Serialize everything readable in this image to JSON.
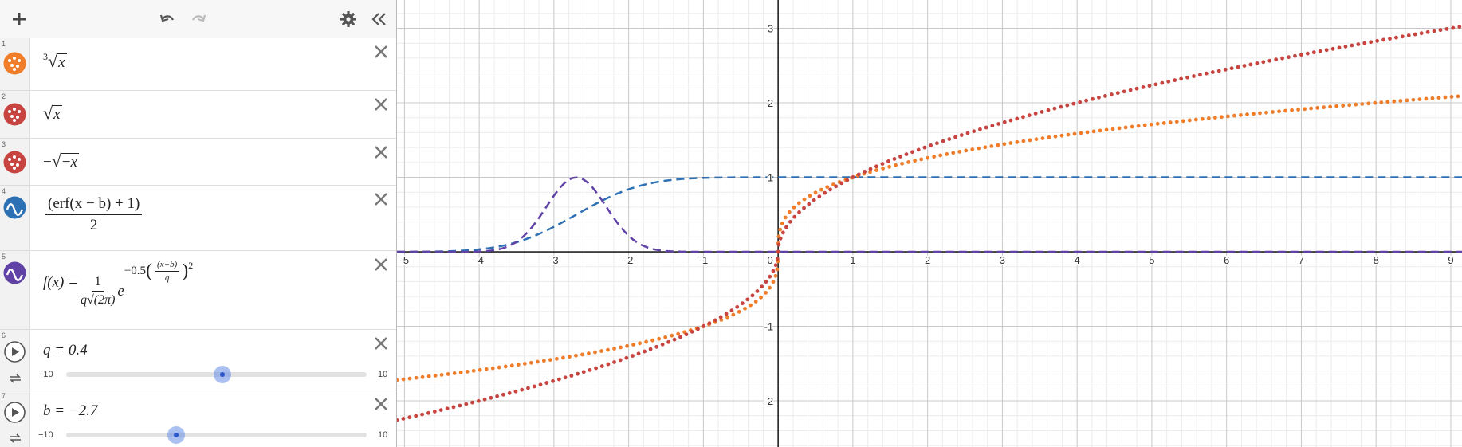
{
  "toolbar": {
    "add_icon": "plus-icon",
    "undo_icon": "undo-icon",
    "redo_icon": "redo-icon",
    "settings_icon": "gear-icon",
    "collapse_icon": "double-chevron-left-icon"
  },
  "expressions": [
    {
      "index": "1",
      "color": "#f07d29",
      "kind": "points",
      "latex": "∛x"
    },
    {
      "index": "2",
      "color": "#c74440",
      "kind": "points",
      "latex": "√x"
    },
    {
      "index": "3",
      "color": "#c74440",
      "kind": "points",
      "latex": "−√(−x)"
    },
    {
      "index": "4",
      "color": "#2d70b3",
      "kind": "dashed",
      "numerator": "(erf(x − b) + 1)",
      "denominator": "2"
    },
    {
      "index": "5",
      "color": "#6042a6",
      "kind": "dashed",
      "lhs": "f(x) =",
      "numerator": "1",
      "denominator": "q√(2π)",
      "exp_coef": "−0.5",
      "exp_num": "(x−b)",
      "exp_den": "q",
      "exp_pow": "2"
    },
    {
      "index": "6",
      "kind": "slider",
      "label": "q = 0.4",
      "value": 0.4,
      "min_label": "−10",
      "max_label": "10",
      "min": -10,
      "max": 10
    },
    {
      "index": "7",
      "kind": "slider",
      "label": "b = −2.7",
      "value": -2.7,
      "min_label": "−10",
      "max_label": "10",
      "min": -10,
      "max": 10
    }
  ],
  "graph": {
    "xlim": [
      -5.1,
      9.15
    ],
    "ylim": [
      -2.62,
      3.38
    ],
    "x_ticks": [
      "-5",
      "-4",
      "-3",
      "-2",
      "-1",
      "0",
      "1",
      "2",
      "3",
      "4",
      "5",
      "6",
      "7",
      "8",
      "9"
    ],
    "y_ticks": [
      "3",
      "2",
      "1",
      "-1",
      "-2"
    ],
    "grid": true,
    "params": {
      "q": 0.4,
      "b": -2.7
    }
  }
}
